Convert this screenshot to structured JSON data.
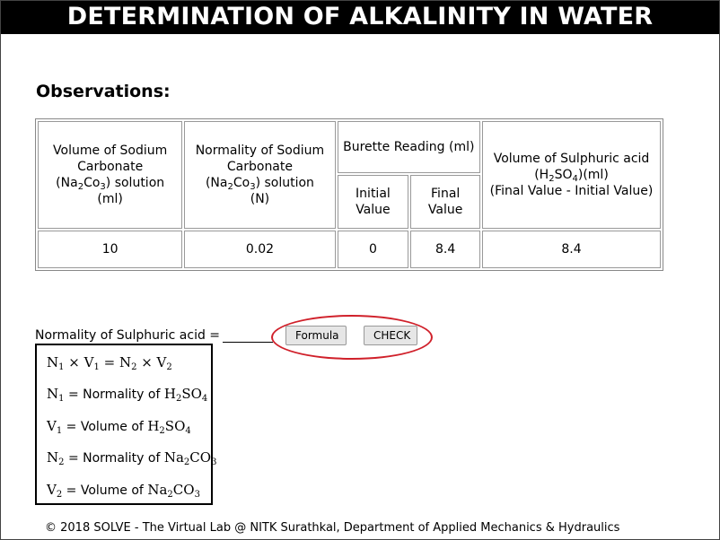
{
  "header": {
    "title": "DETERMINATION OF ALKALINITY IN WATER"
  },
  "observations": {
    "title": "Observations:",
    "columns": {
      "col1": {
        "line1": "Volume of Sodium Carbonate",
        "line2_pre": "(Na",
        "line2_sub1": "2",
        "line2_mid": "Co",
        "line2_sub2": "3",
        "line2_post": ") solution",
        "line3": "(ml)"
      },
      "col2": {
        "line1": "Normality of Sodium Carbonate",
        "line2_pre": "(Na",
        "line2_sub1": "2",
        "line2_mid": "Co",
        "line2_sub2": "3",
        "line2_post": ") solution",
        "line3": "(N)"
      },
      "burette": {
        "label": "Burette Reading (ml)",
        "initial": "Initial Value",
        "final": "Final Value"
      },
      "col4": {
        "line1": "Volume of Sulphuric acid",
        "line2_pre": "(H",
        "line2_sub1": "2",
        "line2_mid": "SO",
        "line2_sub2": "4",
        "line2_post": ")(ml)",
        "line3": "(Final Value - Initial Value)"
      }
    },
    "values": {
      "volume_na2co3": "10",
      "normality_na2co3": "0.02",
      "initial": "0",
      "final": "8.4",
      "volume_h2so4": "8.4"
    }
  },
  "normality": {
    "label": "Normality of Sulphuric acid =",
    "formula_button": "Formula",
    "check_button": "CHECK"
  },
  "formula": {
    "l1": {
      "n1": "N",
      "s1": "1",
      "op1": " × ",
      "v1": "V",
      "s2": "1",
      "eq": " = ",
      "n2": "N",
      "s3": "2",
      "op2": " × ",
      "v2": "V",
      "s4": "2"
    },
    "l2": {
      "sym": "N",
      "sub": "1",
      "text": " = Normality of ",
      "c1": "H",
      "c1s": "2",
      "c2": "SO",
      "c2s": "4"
    },
    "l3": {
      "sym": "V",
      "sub": "1",
      "text": " = Volume of ",
      "c1": "H",
      "c1s": "2",
      "c2": "SO",
      "c2s": "4"
    },
    "l4": {
      "sym": "N",
      "sub": "2",
      "text": " = Normality of ",
      "c1": "Na",
      "c1s": "2",
      "c2": "CO",
      "c2s": "3"
    },
    "l5": {
      "sym": "V",
      "sub": "2",
      "text": " = Volume of ",
      "c1": "Na",
      "c1s": "2",
      "c2": "CO",
      "c2s": "3"
    }
  },
  "footer": {
    "text": "© 2018 SOLVE - The Virtual Lab @ NITK Surathkal, Department of Applied Mechanics & Hydraulics"
  },
  "colors": {
    "header_bg": "#000000",
    "highlight_ellipse": "#d0202a"
  }
}
